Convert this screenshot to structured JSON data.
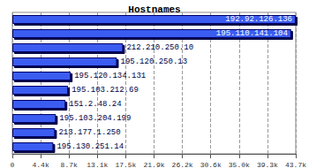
{
  "chart_data": {
    "type": "bar",
    "title": "Hostnames",
    "orientation": "horizontal",
    "categories": [
      "192.92.126.136",
      "195.110.141.104",
      "212.210.250.10",
      "195.120.250.13",
      "195.120.134.131",
      "195.103.212.69",
      "151.2.48.24",
      "195.103.204.199",
      "213.177.1.250",
      "195.130.251.14"
    ],
    "values": [
      43700,
      43000,
      17080,
      16130,
      9010,
      8600,
      8200,
      6720,
      6590,
      6320
    ],
    "color": "#3a5cf0",
    "xlim": [
      0,
      43700
    ],
    "xticks": [
      0,
      {
        "value": 4370,
        "label": "4.4k"
      },
      {
        "value": 8740,
        "label": "8.7k"
      },
      {
        "value": 13110,
        "label": "13.1k"
      },
      {
        "value": 17480,
        "label": "17.5k"
      },
      {
        "value": 21850,
        "label": "21.9k"
      },
      {
        "value": 26220,
        "label": "26.2k"
      },
      {
        "value": 30590,
        "label": "30.6k"
      },
      {
        "value": 34960,
        "label": "35.0k"
      },
      {
        "value": 39330,
        "label": "39.3k"
      },
      {
        "value": 43700,
        "label": "43.7k"
      }
    ],
    "grid": true,
    "data_labels": true,
    "tick_labels": "x"
  }
}
